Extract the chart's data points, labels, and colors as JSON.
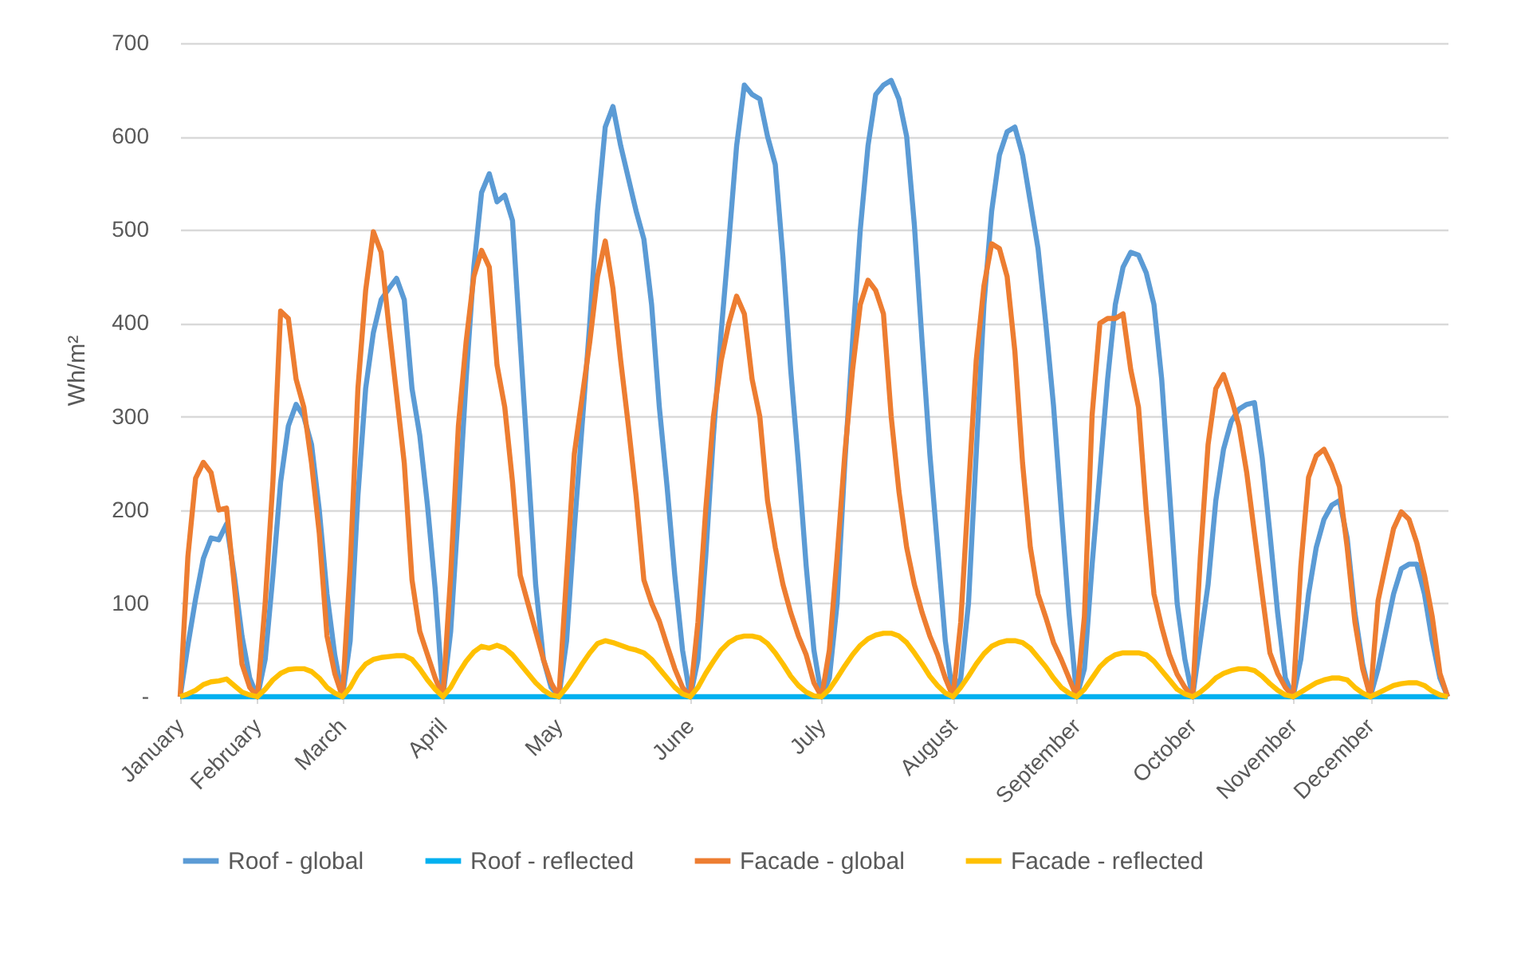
{
  "chart_data": {
    "type": "line",
    "ylabel": "Wh/m²",
    "ylim": [
      0,
      700
    ],
    "yticks": [
      {
        "value": 0,
        "label": "-"
      },
      100,
      200,
      300,
      400,
      500,
      600,
      700
    ],
    "grid": "y",
    "legend": "bottom",
    "line_style": "solid",
    "categories": [
      "January",
      null,
      null,
      null,
      null,
      null,
      null,
      null,
      null,
      null,
      "February",
      null,
      null,
      null,
      null,
      null,
      null,
      null,
      null,
      null,
      null,
      "March",
      null,
      null,
      null,
      null,
      null,
      null,
      null,
      null,
      null,
      null,
      null,
      null,
      "April",
      null,
      null,
      null,
      null,
      null,
      null,
      null,
      null,
      null,
      null,
      null,
      null,
      null,
      null,
      "May",
      null,
      null,
      null,
      null,
      null,
      null,
      null,
      null,
      null,
      null,
      null,
      null,
      null,
      null,
      null,
      null,
      "June",
      null,
      null,
      null,
      null,
      null,
      null,
      null,
      null,
      null,
      null,
      null,
      null,
      null,
      null,
      null,
      null,
      "July",
      null,
      null,
      null,
      null,
      null,
      null,
      null,
      null,
      null,
      null,
      null,
      null,
      null,
      null,
      null,
      null,
      "August",
      null,
      null,
      null,
      null,
      null,
      null,
      null,
      null,
      null,
      null,
      null,
      null,
      null,
      null,
      null,
      "September",
      null,
      null,
      null,
      null,
      null,
      null,
      null,
      null,
      null,
      null,
      null,
      null,
      null,
      null,
      "October",
      null,
      null,
      null,
      null,
      null,
      null,
      null,
      null,
      null,
      null,
      null,
      null,
      "November",
      null,
      null,
      null,
      null,
      null,
      null,
      null,
      null,
      null,
      "December",
      null,
      null,
      null,
      null,
      null,
      null,
      null,
      null,
      null,
      null
    ],
    "series": [
      {
        "name": "Roof - global",
        "color": "#5b9bd5",
        "values": [
          0,
          55,
          105,
          148,
          170,
          168,
          185,
          130,
          65,
          20,
          0,
          40,
          130,
          230,
          290,
          313,
          300,
          270,
          200,
          110,
          45,
          0,
          60,
          215,
          330,
          390,
          425,
          437,
          448,
          425,
          330,
          280,
          205,
          115,
          0,
          70,
          200,
          340,
          460,
          540,
          560,
          530,
          537,
          510,
          380,
          250,
          120,
          40,
          10,
          0,
          60,
          180,
          290,
          400,
          520,
          610,
          632,
          590,
          555,
          520,
          490,
          420,
          310,
          225,
          130,
          50,
          0,
          40,
          150,
          280,
          390,
          488,
          590,
          655,
          645,
          640,
          600,
          570,
          470,
          350,
          250,
          140,
          50,
          0,
          20,
          100,
          250,
          380,
          500,
          590,
          645,
          655,
          660,
          640,
          600,
          505,
          380,
          260,
          160,
          60,
          0,
          20,
          100,
          260,
          420,
          520,
          580,
          605,
          610,
          580,
          530,
          480,
          400,
          312,
          200,
          90,
          0,
          30,
          142,
          240,
          340,
          420,
          460,
          476,
          473,
          454,
          420,
          340,
          220,
          100,
          40,
          0,
          60,
          120,
          210,
          265,
          295,
          308,
          313,
          315,
          256,
          175,
          90,
          20,
          0,
          40,
          110,
          160,
          190,
          205,
          210,
          170,
          90,
          35,
          0,
          30,
          70,
          110,
          137,
          142,
          142,
          110,
          60,
          20,
          0
        ]
      },
      {
        "name": "Roof - reflected",
        "color": "#00b0f0",
        "values": [
          0,
          0,
          0,
          0,
          0,
          0,
          0,
          0,
          0,
          0,
          0,
          0,
          0,
          0,
          0,
          0,
          0,
          0,
          0,
          0,
          0,
          0,
          0,
          0,
          0,
          0,
          0,
          0,
          0,
          0,
          0,
          0,
          0,
          0,
          0,
          0,
          0,
          0,
          0,
          0,
          0,
          0,
          0,
          0,
          0,
          0,
          0,
          0,
          0,
          0,
          0,
          0,
          0,
          0,
          0,
          0,
          0,
          0,
          0,
          0,
          0,
          0,
          0,
          0,
          0,
          0,
          0,
          0,
          0,
          0,
          0,
          0,
          0,
          0,
          0,
          0,
          0,
          0,
          0,
          0,
          0,
          0,
          0,
          0,
          0,
          0,
          0,
          0,
          0,
          0,
          0,
          0,
          0,
          0,
          0,
          0,
          0,
          0,
          0,
          0,
          0,
          0,
          0,
          0,
          0,
          0,
          0,
          0,
          0,
          0,
          0,
          0,
          0,
          0,
          0,
          0,
          0,
          0,
          0,
          0,
          0,
          0,
          0,
          0,
          0,
          0,
          0,
          0,
          0,
          0,
          0,
          0,
          0,
          0,
          0,
          0,
          0,
          0,
          0,
          0,
          0,
          0,
          0,
          0,
          0,
          0,
          0,
          0,
          0,
          0,
          0,
          0,
          0,
          0,
          0,
          0,
          0,
          0,
          0,
          0,
          0,
          0,
          0,
          0,
          0
        ]
      },
      {
        "name": "Facade - global",
        "color": "#ed7d31",
        "values": [
          0,
          150,
          234,
          251,
          240,
          200,
          202,
          120,
          35,
          10,
          0,
          100,
          230,
          413,
          405,
          340,
          310,
          250,
          175,
          65,
          25,
          0,
          140,
          330,
          435,
          498,
          476,
          397,
          324,
          250,
          125,
          70,
          45,
          20,
          0,
          130,
          290,
          380,
          450,
          478,
          460,
          355,
          310,
          230,
          130,
          100,
          70,
          40,
          15,
          0,
          130,
          260,
          320,
          380,
          450,
          488,
          437,
          360,
          290,
          215,
          125,
          100,
          81,
          55,
          30,
          10,
          0,
          80,
          200,
          300,
          360,
          400,
          429,
          410,
          340,
          300,
          210,
          160,
          120,
          90,
          65,
          45,
          15,
          0,
          50,
          150,
          260,
          350,
          420,
          446,
          435,
          410,
          300,
          220,
          160,
          120,
          90,
          65,
          45,
          20,
          0,
          80,
          220,
          360,
          440,
          485,
          480,
          450,
          370,
          250,
          160,
          110,
          85,
          58,
          40,
          20,
          0,
          86,
          302,
          400,
          405,
          405,
          410,
          350,
          310,
          200,
          110,
          75,
          45,
          24,
          10,
          0,
          150,
          270,
          330,
          345,
          320,
          290,
          240,
          175,
          110,
          47,
          25,
          10,
          0,
          140,
          235,
          258,
          265,
          248,
          225,
          160,
          80,
          30,
          0,
          103,
          142,
          180,
          198,
          190,
          165,
          130,
          86,
          25,
          0
        ]
      },
      {
        "name": "Facade - reflected",
        "color": "#ffc000",
        "values": [
          0,
          3,
          7,
          13,
          16,
          17,
          19,
          12,
          5,
          2,
          0,
          8,
          18,
          25,
          29,
          30,
          30,
          27,
          20,
          10,
          4,
          0,
          10,
          25,
          35,
          40,
          42,
          43,
          44,
          44,
          40,
          30,
          18,
          8,
          0,
          10,
          25,
          38,
          48,
          54,
          52,
          55,
          52,
          45,
          35,
          25,
          15,
          7,
          2,
          0,
          10,
          22,
          35,
          47,
          57,
          60,
          58,
          55,
          52,
          50,
          47,
          40,
          30,
          20,
          10,
          3,
          0,
          10,
          25,
          38,
          50,
          58,
          63,
          65,
          65,
          63,
          57,
          47,
          35,
          22,
          12,
          5,
          1,
          0,
          8,
          20,
          33,
          45,
          55,
          62,
          66,
          68,
          68,
          65,
          58,
          47,
          35,
          22,
          12,
          4,
          0,
          10,
          22,
          35,
          46,
          54,
          58,
          60,
          60,
          58,
          52,
          42,
          32,
          20,
          10,
          4,
          0,
          8,
          20,
          32,
          40,
          45,
          47,
          47,
          47,
          45,
          38,
          28,
          18,
          8,
          3,
          0,
          5,
          12,
          20,
          25,
          28,
          30,
          30,
          28,
          22,
          14,
          7,
          2,
          0,
          5,
          10,
          15,
          18,
          20,
          20,
          18,
          10,
          4,
          0,
          4,
          8,
          12,
          14,
          15,
          15,
          12,
          6,
          2,
          0
        ]
      }
    ]
  }
}
